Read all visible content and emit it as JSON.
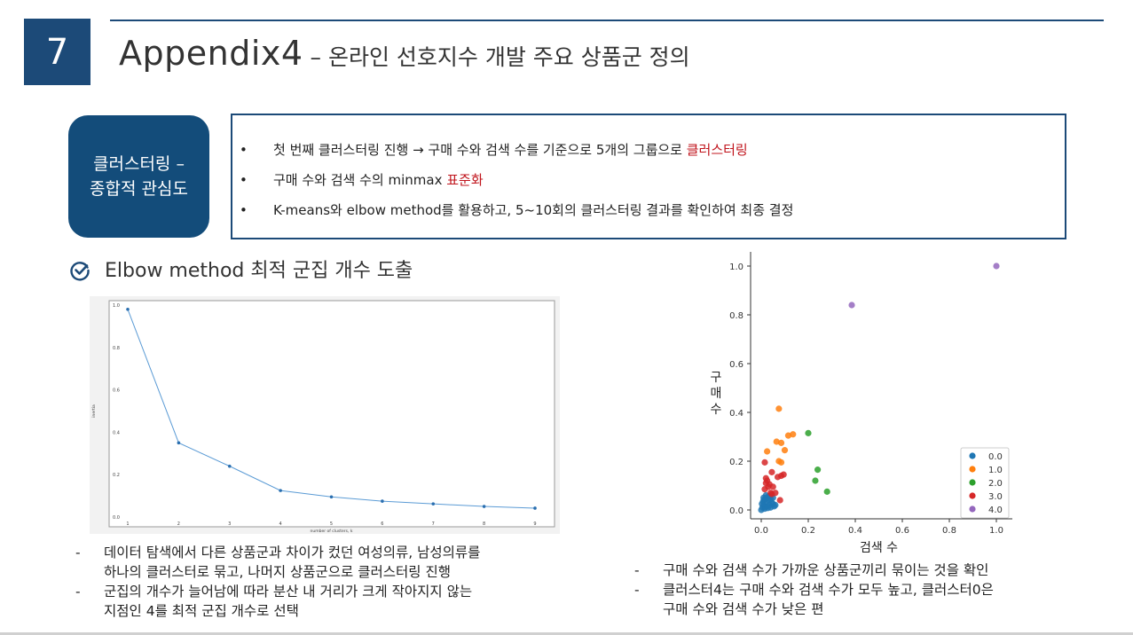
{
  "header": {
    "slide_number": "7",
    "title_main": "Appendix4",
    "title_sub": " – 온라인 선호지수 개발 주요 상품군 정의"
  },
  "badge": {
    "line1": "클러스터링 –",
    "line2": "종합적 관심도"
  },
  "bullets": [
    {
      "text": "첫 번째 클러스터링 진행 → 구매 수와 검색 수를 기준으로 5개의 그룹으로 ",
      "highlight": "클러스터링"
    },
    {
      "text": "구매 수와 검색 수의 minmax ",
      "highlight": "표준화"
    },
    {
      "text": "K-means와 elbow method를 활용하고, 5~10회의 클러스터링 결과를 확인하여 최종 결정",
      "highlight": ""
    }
  ],
  "bullet_symbol": "•",
  "section": {
    "title": "Elbow method 최적 군집 개수 도출",
    "icon": "check-circle-icon"
  },
  "left_notes": [
    {
      "dash": "-",
      "lines": [
        "데이터 탐색에서 다른 상품군과 차이가 컸던 여성의류, 남성의류를",
        "하나의 클러스터로 묶고, 나머지 상품군으로 클러스터링 진행"
      ]
    },
    {
      "dash": "-",
      "lines": [
        "군집의 개수가 늘어남에 따라 분산 내 거리가 크게 작아지지 않는",
        "지점인 4를 최적 군집 개수로 선택"
      ]
    }
  ],
  "right_notes": [
    {
      "dash": "-",
      "lines": [
        "구매 수와 검색 수가 가까운 상품군끼리 묶이는 것을 확인"
      ]
    },
    {
      "dash": "-",
      "lines": [
        "클러스터4는 구매 수와 검색 수가 모두 높고, 클러스터0은",
        "구매 수와 검색 수가 낮은 편"
      ]
    }
  ],
  "colors": {
    "navy": "#1c4a78",
    "accent_red": "#c0141c"
  },
  "chart_data": [
    {
      "type": "line",
      "xlabel": "number of clusters, k",
      "ylabel": "inertia",
      "x": [
        1,
        2,
        3,
        4,
        5,
        6,
        7,
        8,
        9
      ],
      "values": [
        0.98,
        0.35,
        0.24,
        0.125,
        0.095,
        0.075,
        0.062,
        0.05,
        0.042
      ],
      "xticks": [
        "1",
        "2",
        "3",
        "4",
        "5",
        "6",
        "7",
        "8",
        "9"
      ],
      "yticks": [
        "0.0",
        "0.2",
        "0.4",
        "0.6",
        "0.8",
        "1.0"
      ],
      "xlim": [
        1,
        9
      ],
      "ylim": [
        0,
        1.0
      ],
      "color": "#5b9bd5"
    },
    {
      "type": "scatter",
      "xlabel": "검색 수",
      "ylabel": "구매 수",
      "xlim": [
        0,
        1.0
      ],
      "ylim": [
        0,
        1.0
      ],
      "xticks": [
        "0.0",
        "0.2",
        "0.4",
        "0.6",
        "0.8",
        "1.0"
      ],
      "yticks": [
        "0.0",
        "0.2",
        "0.4",
        "0.6",
        "0.8",
        "1.0"
      ],
      "legend_position": "lower right",
      "series": [
        {
          "name": "0.0",
          "color": "#1f77b4",
          "points": [
            [
              0.0,
              0.0
            ],
            [
              0.005,
              0.01
            ],
            [
              0.01,
              0.02
            ],
            [
              0.015,
              0.005
            ],
            [
              0.02,
              0.03
            ],
            [
              0.025,
              0.015
            ],
            [
              0.03,
              0.04
            ],
            [
              0.035,
              0.02
            ],
            [
              0.04,
              0.01
            ],
            [
              0.045,
              0.03
            ],
            [
              0.05,
              0.025
            ],
            [
              0.055,
              0.015
            ],
            [
              0.01,
              0.05
            ],
            [
              0.02,
              0.06
            ],
            [
              0.03,
              0.055
            ],
            [
              0.04,
              0.045
            ],
            [
              0.008,
              0.035
            ],
            [
              0.012,
              0.042
            ],
            [
              0.018,
              0.012
            ],
            [
              0.05,
              0.05
            ],
            [
              0.06,
              0.02
            ],
            [
              0.003,
              0.025
            ],
            [
              0.022,
              0.048
            ],
            [
              0.028,
              0.008
            ],
            [
              0.038,
              0.058
            ]
          ]
        },
        {
          "name": "1.0",
          "color": "#ff7f0e",
          "points": [
            [
              0.075,
              0.415
            ],
            [
              0.115,
              0.305
            ],
            [
              0.065,
              0.28
            ],
            [
              0.085,
              0.275
            ],
            [
              0.025,
              0.24
            ],
            [
              0.1,
              0.245
            ],
            [
              0.075,
              0.2
            ],
            [
              0.085,
              0.195
            ],
            [
              0.135,
              0.31
            ]
          ]
        },
        {
          "name": "2.0",
          "color": "#2ca02c",
          "points": [
            [
              0.2,
              0.315
            ],
            [
              0.24,
              0.165
            ],
            [
              0.23,
              0.12
            ],
            [
              0.28,
              0.075
            ]
          ]
        },
        {
          "name": "3.0",
          "color": "#d62728",
          "points": [
            [
              0.015,
              0.195
            ],
            [
              0.045,
              0.155
            ],
            [
              0.085,
              0.14
            ],
            [
              0.07,
              0.135
            ],
            [
              0.095,
              0.145
            ],
            [
              0.02,
              0.13
            ],
            [
              0.025,
              0.12
            ],
            [
              0.035,
              0.105
            ],
            [
              0.03,
              0.095
            ],
            [
              0.015,
              0.085
            ],
            [
              0.04,
              0.07
            ],
            [
              0.045,
              0.065
            ],
            [
              0.06,
              0.07
            ],
            [
              0.08,
              0.04
            ],
            [
              0.02,
              0.11
            ],
            [
              0.05,
              0.095
            ]
          ]
        },
        {
          "name": "4.0",
          "color": "#9467bd",
          "points": [
            [
              0.385,
              0.84
            ],
            [
              1.0,
              1.0
            ]
          ]
        }
      ]
    }
  ]
}
